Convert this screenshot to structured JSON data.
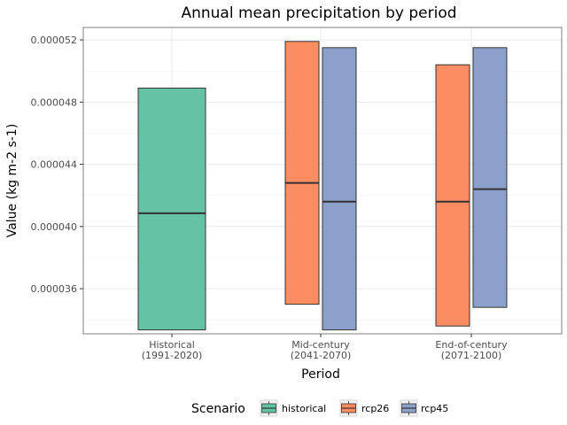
{
  "chart_data": {
    "type": "boxplot",
    "title": "Annual mean precipitation by period",
    "xlabel": "Period",
    "ylabel": "Value (kg m-2 s-1)",
    "categories": [
      {
        "line1": "Historical",
        "line2": "(1991-2020)"
      },
      {
        "line1": "Mid-century",
        "line2": "(2041-2070)"
      },
      {
        "line1": "End-of-century",
        "line2": "(2071-2100)"
      }
    ],
    "ylim": [
      3.31e-05,
      5.28e-05
    ],
    "yticks": [
      3.6e-05,
      4e-05,
      4.4e-05,
      4.8e-05,
      5.2e-05
    ],
    "ytick_labels": [
      "0.000036",
      "0.000040",
      "0.000044",
      "0.000048",
      "0.000052"
    ],
    "grid": true,
    "series": [
      {
        "name": "historical",
        "color": "#66c2a5",
        "boxes": [
          {
            "category": 0,
            "low": 3.335e-05,
            "median": 4.085e-05,
            "high": 4.89e-05
          }
        ]
      },
      {
        "name": "rcp26",
        "color": "#fc8d62",
        "boxes": [
          {
            "category": 1,
            "low": 3.5e-05,
            "median": 4.28e-05,
            "high": 5.19e-05
          },
          {
            "category": 2,
            "low": 3.36e-05,
            "median": 4.16e-05,
            "high": 5.04e-05
          }
        ]
      },
      {
        "name": "rcp45",
        "color": "#8da0cb",
        "boxes": [
          {
            "category": 1,
            "low": 3.335e-05,
            "median": 4.16e-05,
            "high": 5.15e-05
          },
          {
            "category": 2,
            "low": 3.48e-05,
            "median": 4.24e-05,
            "high": 5.15e-05
          }
        ]
      }
    ],
    "legend": {
      "title": "Scenario",
      "position": "bottom",
      "entries": [
        "historical",
        "rcp26",
        "rcp45"
      ]
    }
  }
}
